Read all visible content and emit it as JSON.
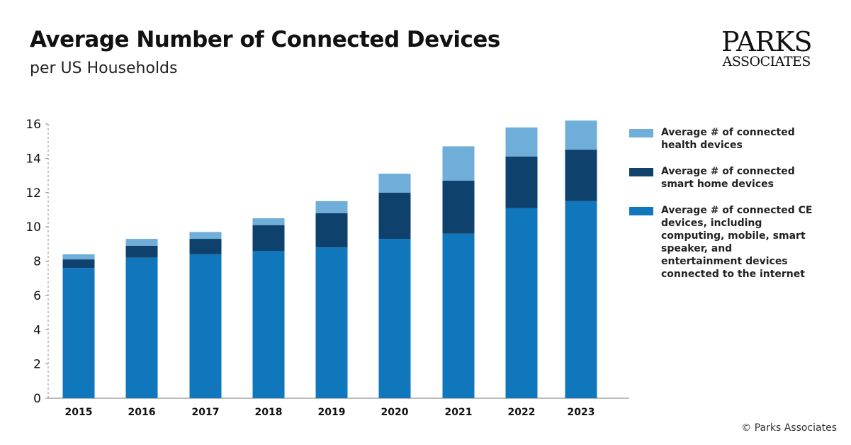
{
  "header": {
    "title": "Average Number of Connected Devices",
    "subtitle": "per US Households"
  },
  "logo": {
    "line1": "PARKS",
    "line2": "ASSOCIATES"
  },
  "footer": {
    "copyright": "© Parks Associates"
  },
  "colors": {
    "ce": "#1177bd",
    "smart_home": "#0e416b",
    "health": "#6eaed8"
  },
  "chart_data": {
    "type": "bar",
    "stacked": true,
    "title": "Average Number of Connected Devices",
    "subtitle": "per US Households",
    "categories": [
      "2015",
      "2016",
      "2017",
      "2018",
      "2019",
      "2020",
      "2021",
      "2022",
      "2023"
    ],
    "series": [
      {
        "key": "ce",
        "name": "Average # of connected CE devices, including computing, mobile, smart speaker, and entertainment devices connected to the internet",
        "values": [
          7.6,
          8.2,
          8.4,
          8.6,
          8.8,
          9.3,
          9.6,
          11.1,
          11.5
        ]
      },
      {
        "key": "smart_home",
        "name": "Average # of connected smart home devices",
        "values": [
          0.5,
          0.7,
          0.9,
          1.5,
          2.0,
          2.7,
          3.1,
          3.0,
          3.0
        ]
      },
      {
        "key": "health",
        "name": "Average # of connected health devices",
        "values": [
          0.3,
          0.4,
          0.4,
          0.4,
          0.7,
          1.1,
          2.0,
          1.7,
          1.7
        ]
      }
    ],
    "yticks": [
      "0",
      "2",
      "4",
      "6",
      "8",
      "10",
      "12",
      "14",
      "16"
    ],
    "ylim": [
      0,
      16
    ],
    "xlabel": "",
    "ylabel": "",
    "legend_position": "right"
  }
}
